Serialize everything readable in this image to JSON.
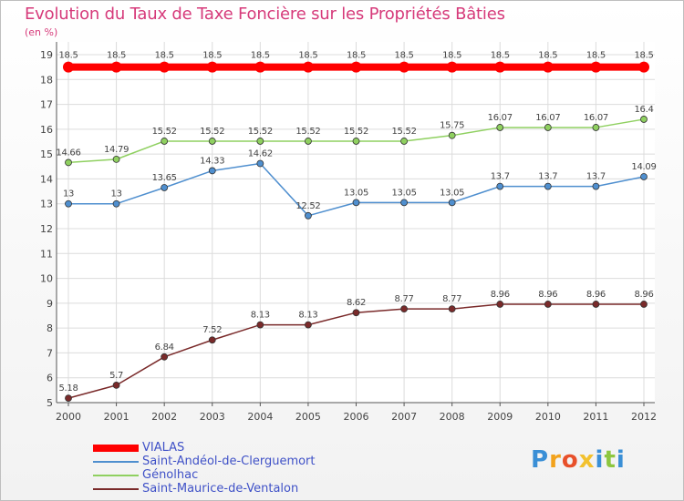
{
  "page": {
    "title": "Evolution du Taux de Taxe Foncière sur les Propriétés Bâties",
    "unit": "(en %)"
  },
  "chart_data": {
    "type": "line",
    "categories": [
      "2000",
      "2001",
      "2002",
      "2003",
      "2004",
      "2005",
      "2006",
      "2007",
      "2008",
      "2009",
      "2010",
      "2011",
      "2012"
    ],
    "ylim": [
      5,
      19
    ],
    "yticks": [
      5,
      6,
      7,
      8,
      9,
      10,
      11,
      12,
      13,
      14,
      15,
      16,
      17,
      18,
      19
    ],
    "grid": true,
    "legend_placement": "bottom-left",
    "series": [
      {
        "name": "VIALAS",
        "color": "#ff0000",
        "values": [
          18.5,
          18.5,
          18.5,
          18.5,
          18.5,
          18.5,
          18.5,
          18.5,
          18.5,
          18.5,
          18.5,
          18.5,
          18.5
        ],
        "labels": [
          "18.5",
          "18.5",
          "18.5",
          "18.5",
          "18.5",
          "18.5",
          "18.5",
          "18.5",
          "18.5",
          "18.5",
          "18.5",
          "18.5",
          "18.5"
        ]
      },
      {
        "name": "Saint-Andéol-de-Clerguemort",
        "color": "#4f8fcf",
        "values": [
          13,
          13,
          13.65,
          14.33,
          14.62,
          12.52,
          13.05,
          13.05,
          13.05,
          13.7,
          13.7,
          13.7,
          14.09
        ],
        "labels": [
          "13",
          "13",
          "13.65",
          "14.33",
          "14.62",
          "12.52",
          "13.05",
          "13.05",
          "13.05",
          "13.7",
          "13.7",
          "13.7",
          "14.09"
        ]
      },
      {
        "name": "Génolhac",
        "color": "#8fd060",
        "values": [
          14.66,
          14.79,
          15.52,
          15.52,
          15.52,
          15.52,
          15.52,
          15.52,
          15.75,
          16.07,
          16.07,
          16.07,
          16.4
        ],
        "labels": [
          "14.66",
          "14.79",
          "15.52",
          "15.52",
          "15.52",
          "15.52",
          "15.52",
          "15.52",
          "15.75",
          "16.07",
          "16.07",
          "16.07",
          "16.4"
        ]
      },
      {
        "name": "Saint-Maurice-de-Ventalon",
        "color": "#7a2a2a",
        "values": [
          5.18,
          5.7,
          6.84,
          7.52,
          8.13,
          8.13,
          8.62,
          8.77,
          8.77,
          8.96,
          8.96,
          8.96,
          8.96
        ],
        "labels": [
          "5.18",
          "5.7",
          "6.84",
          "7.52",
          "8.13",
          "8.13",
          "8.62",
          "8.77",
          "8.77",
          "8.96",
          "8.96",
          "8.96",
          "8.96"
        ]
      }
    ]
  },
  "brand": {
    "letters": [
      "P",
      "r",
      "o",
      "x",
      "i",
      "t",
      "i"
    ],
    "colors": [
      "#3a8fd6",
      "#f2a21c",
      "#e8502a",
      "#f2c12e",
      "#3a8fd6",
      "#8dc63f",
      "#3a8fd6"
    ]
  }
}
